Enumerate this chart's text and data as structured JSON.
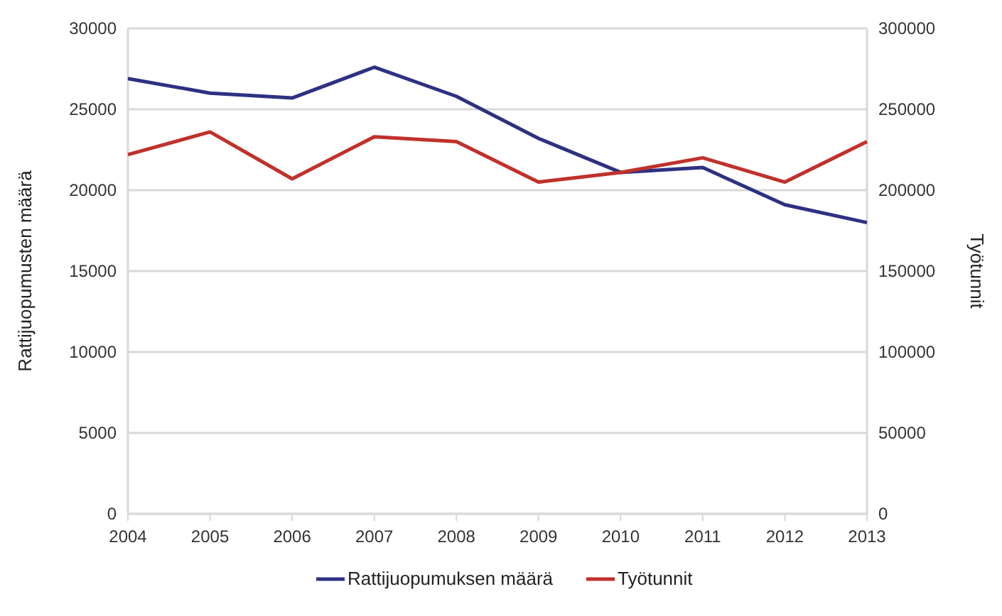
{
  "chart_data": {
    "type": "line",
    "x": [
      2004,
      2005,
      2006,
      2007,
      2008,
      2009,
      2010,
      2011,
      2012,
      2013
    ],
    "ylabel": "Rattijuopumusten määrä",
    "y2label": "Työtunnit",
    "series": [
      {
        "name": "Rattijuopumuksen määrä",
        "color": "#2e3182",
        "values": [
          26900,
          26000,
          25700,
          27600,
          25800,
          23200,
          21100,
          21400,
          19100,
          18000
        ]
      },
      {
        "name": "Työtunnit",
        "color": "#c0312b",
        "axis": "y2",
        "values": [
          222000,
          236000,
          207000,
          233000,
          230000,
          205000,
          211000,
          220000,
          205000,
          230000
        ]
      }
    ],
    "xlim": [
      2004,
      2013
    ],
    "xticks": [
      2004,
      2005,
      2006,
      2007,
      2008,
      2009,
      2010,
      2011,
      2012,
      2013
    ],
    "ylim": [
      0,
      30000
    ],
    "yticks": [
      0,
      5000,
      10000,
      15000,
      20000,
      25000,
      30000
    ],
    "y2lim": [
      0,
      300000
    ],
    "y2ticks": [
      0,
      50000,
      100000,
      150000,
      200000,
      250000,
      300000
    ],
    "grid": "y",
    "legend": "bottom",
    "marker": "none",
    "line_style": "solid"
  }
}
